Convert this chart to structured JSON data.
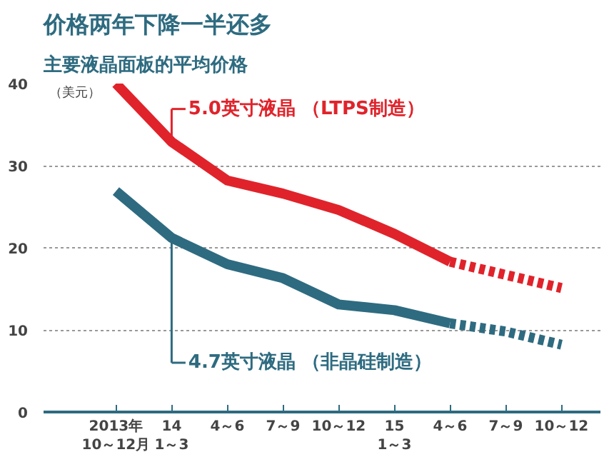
{
  "chart_data": {
    "type": "line",
    "title": "价格两年下降一半还多",
    "subtitle": "主要液晶面板的平均价格",
    "ylabel": "（美元）",
    "categories": [
      "2013年\n10～12月",
      "14\n1～3",
      "4～6",
      "7～9",
      "10～12",
      "15\n1～3",
      "4～6",
      "7～9",
      "10～12"
    ],
    "series": [
      {
        "name": "5.0英寸液晶 （LTPS制造）",
        "color": "#e0232b",
        "values": [
          40,
          32.9,
          28.2,
          26.6,
          24.6,
          21.7,
          18.3,
          null,
          null
        ],
        "line_style": "solid"
      },
      {
        "color": "#e0232b",
        "values": [
          null,
          null,
          null,
          null,
          null,
          null,
          18.3,
          16.7,
          15.1
        ],
        "line_style": "dashed"
      },
      {
        "name": "4.7英寸液晶 （非晶硅制造）",
        "color": "#2e6b80",
        "values": [
          26.9,
          21.2,
          18.0,
          16.3,
          13.1,
          12.4,
          10.8,
          null,
          null
        ],
        "line_style": "solid"
      },
      {
        "color": "#2e6b80",
        "values": [
          null,
          null,
          null,
          null,
          null,
          null,
          10.8,
          9.8,
          8.2
        ],
        "line_style": "dashed"
      }
    ],
    "ylim": [
      0,
      40
    ],
    "yticks": [
      0,
      10,
      20,
      30,
      40
    ],
    "grid": "y",
    "legend": "center"
  }
}
